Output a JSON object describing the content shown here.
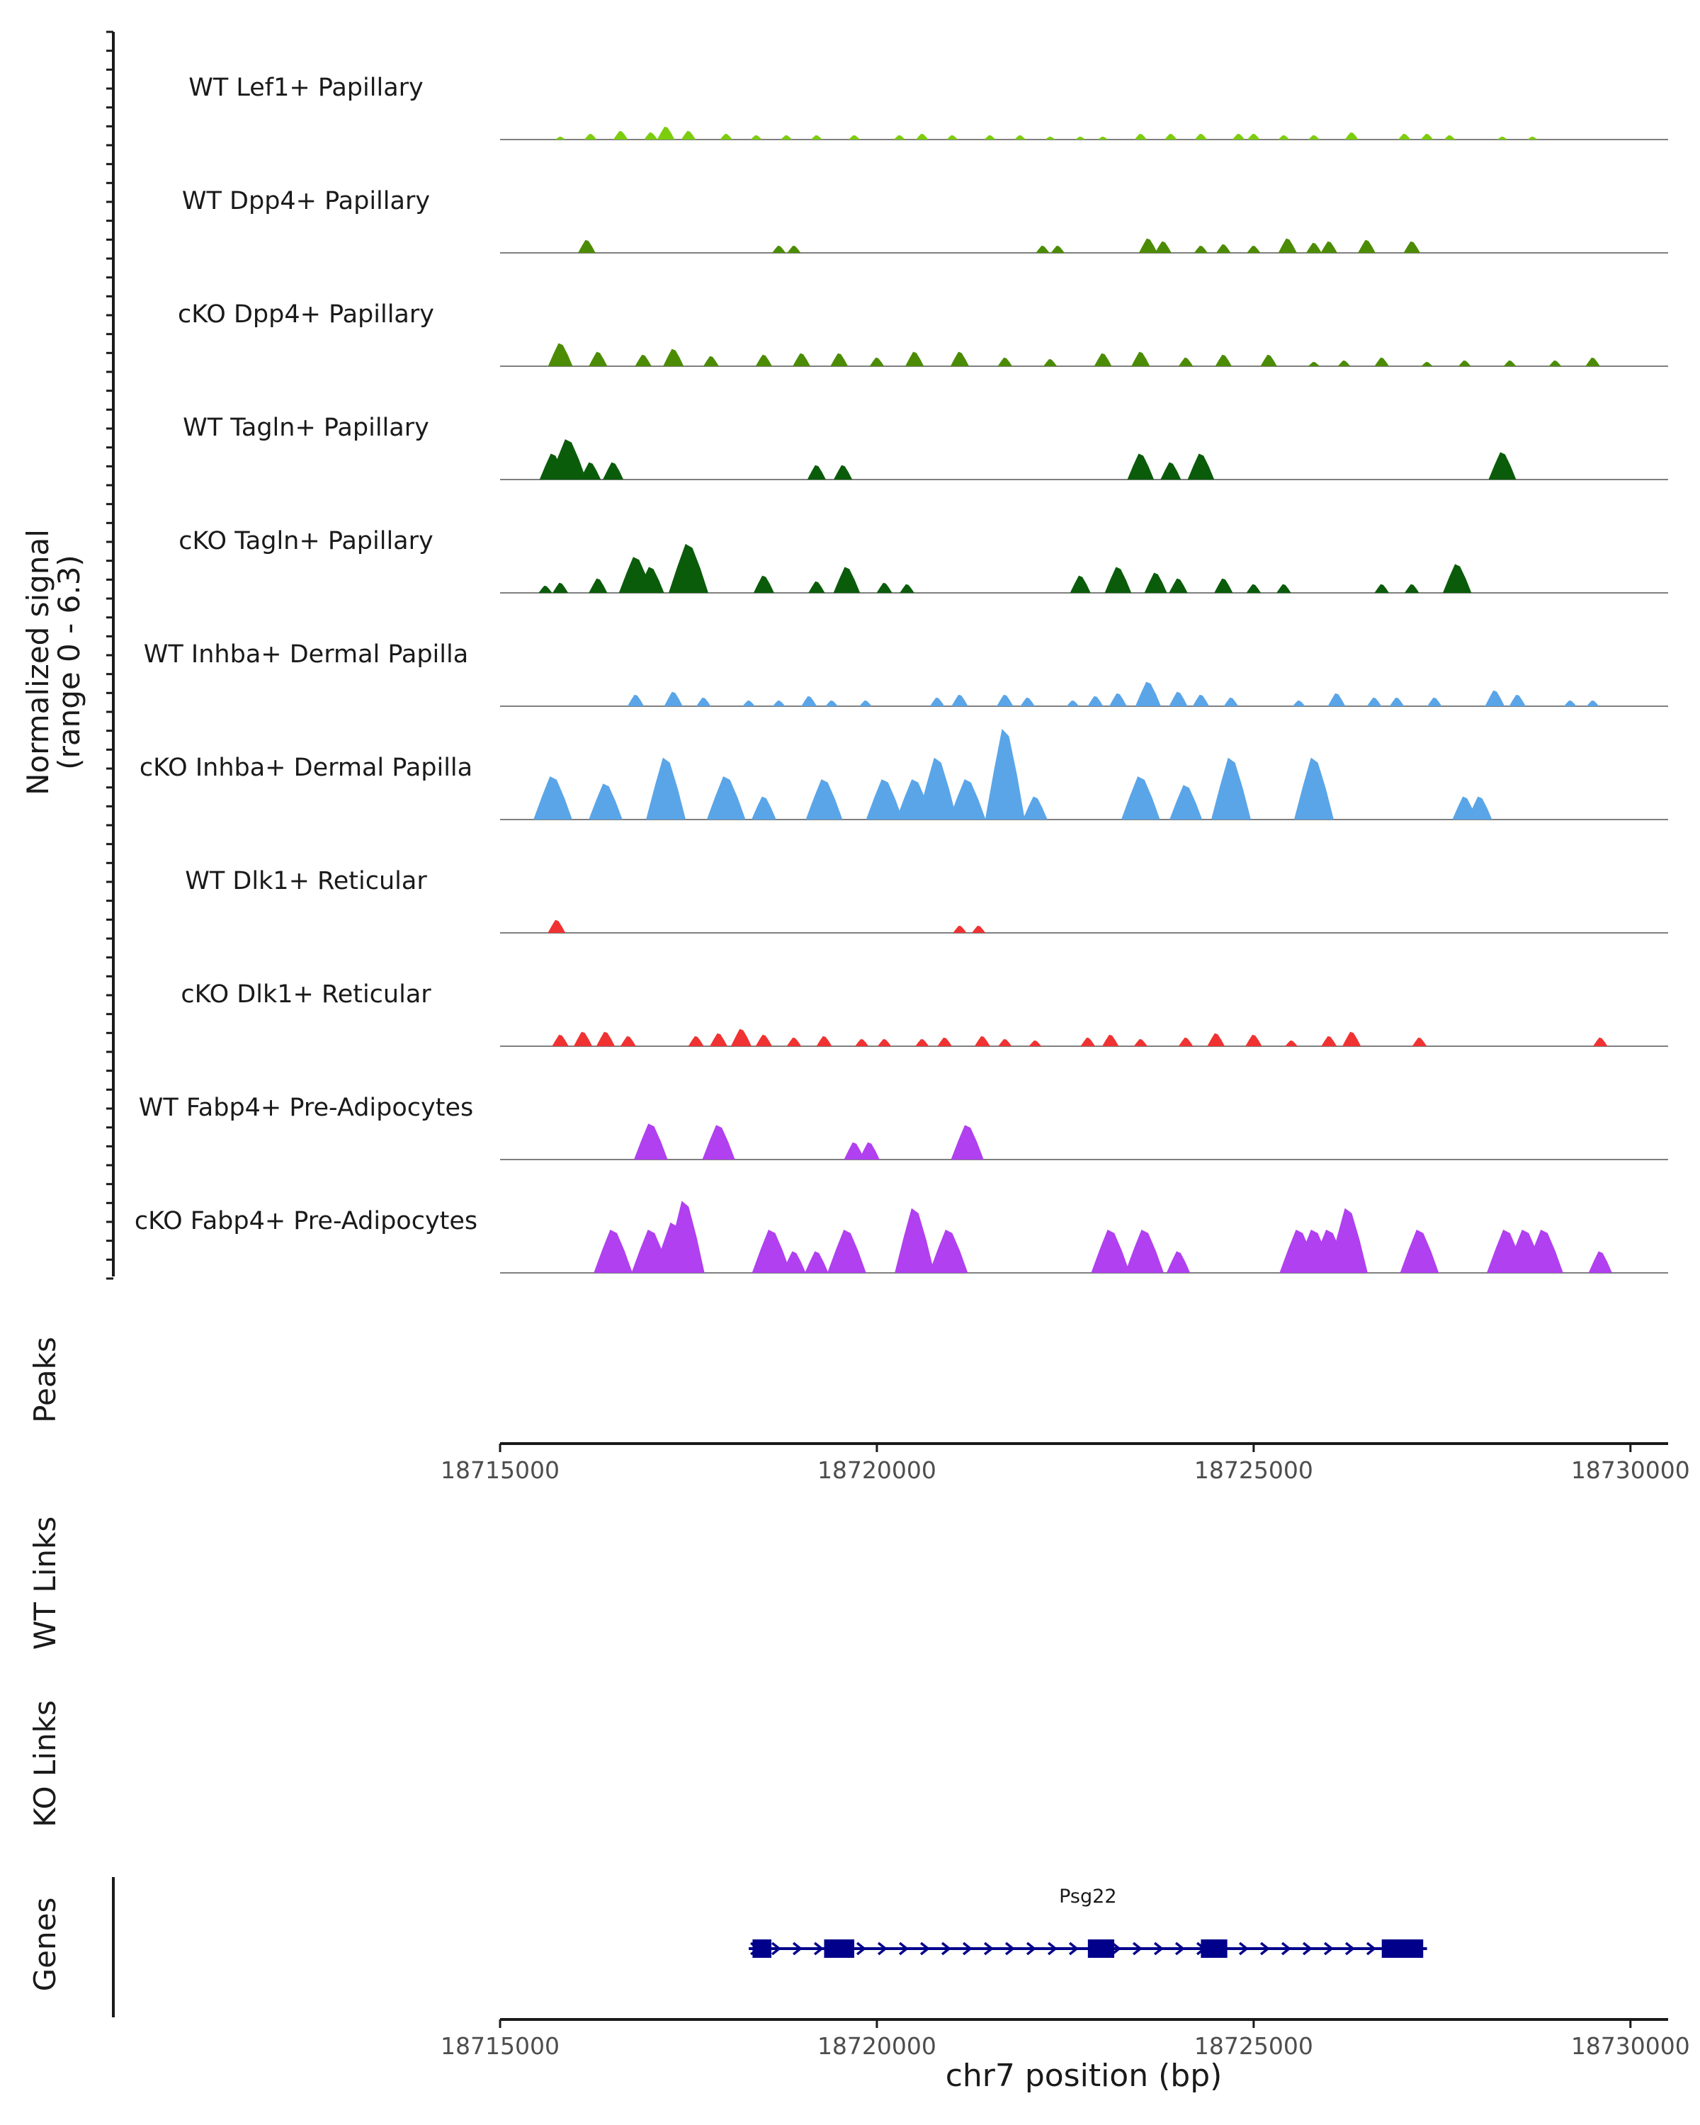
{
  "chart_data": {
    "type": "area",
    "title": "",
    "ylabel": "Normalized signal",
    "ylabel_range": "(range 0 - 6.3)",
    "ylim": [
      0,
      6.3
    ],
    "xlabel": "chr7 position (bp)",
    "xlim": [
      18715000,
      18730500
    ],
    "xticks": [
      "18715000",
      "18720000",
      "18725000",
      "18730000"
    ],
    "tracks": [
      {
        "name": "WT Lef1+ Papillary",
        "color": "#7ccd0c",
        "peaks": [
          [
            18715800,
            0.2
          ],
          [
            18716200,
            0.4
          ],
          [
            18716600,
            0.6
          ],
          [
            18717000,
            0.5
          ],
          [
            18717200,
            0.9
          ],
          [
            18717500,
            0.6
          ],
          [
            18718000,
            0.4
          ],
          [
            18718400,
            0.3
          ],
          [
            18718800,
            0.3
          ],
          [
            18719200,
            0.3
          ],
          [
            18719700,
            0.3
          ],
          [
            18720300,
            0.3
          ],
          [
            18720600,
            0.4
          ],
          [
            18721000,
            0.3
          ],
          [
            18721500,
            0.3
          ],
          [
            18721900,
            0.3
          ],
          [
            18722300,
            0.2
          ],
          [
            18722700,
            0.2
          ],
          [
            18723000,
            0.2
          ],
          [
            18723500,
            0.4
          ],
          [
            18723900,
            0.4
          ],
          [
            18724300,
            0.4
          ],
          [
            18724800,
            0.4
          ],
          [
            18725000,
            0.4
          ],
          [
            18725400,
            0.3
          ],
          [
            18725800,
            0.3
          ],
          [
            18726300,
            0.5
          ],
          [
            18727000,
            0.4
          ],
          [
            18727300,
            0.4
          ],
          [
            18727600,
            0.3
          ],
          [
            18728300,
            0.2
          ],
          [
            18728700,
            0.2
          ]
        ]
      },
      {
        "name": "WT Dpp4+ Papillary",
        "color": "#4c8c04",
        "peaks": [
          [
            18716150,
            0.9
          ],
          [
            18718700,
            0.5
          ],
          [
            18718900,
            0.5
          ],
          [
            18722200,
            0.5
          ],
          [
            18722400,
            0.5
          ],
          [
            18723600,
            1.0
          ],
          [
            18723800,
            0.8
          ],
          [
            18724300,
            0.5
          ],
          [
            18724600,
            0.6
          ],
          [
            18725000,
            0.5
          ],
          [
            18725450,
            1.0
          ],
          [
            18725800,
            0.7
          ],
          [
            18726000,
            0.8
          ],
          [
            18726500,
            0.9
          ],
          [
            18727100,
            0.8
          ]
        ]
      },
      {
        "name": "cKO Dpp4+ Papillary",
        "color": "#4c8c04",
        "peaks": [
          [
            18715800,
            1.6
          ],
          [
            18716300,
            1.0
          ],
          [
            18716900,
            0.8
          ],
          [
            18717300,
            1.2
          ],
          [
            18717800,
            0.7
          ],
          [
            18718500,
            0.8
          ],
          [
            18719000,
            0.9
          ],
          [
            18719500,
            0.9
          ],
          [
            18720000,
            0.6
          ],
          [
            18720500,
            1.0
          ],
          [
            18721100,
            1.0
          ],
          [
            18721700,
            0.6
          ],
          [
            18722300,
            0.5
          ],
          [
            18723000,
            0.9
          ],
          [
            18723500,
            1.0
          ],
          [
            18724100,
            0.6
          ],
          [
            18724600,
            0.8
          ],
          [
            18725200,
            0.8
          ],
          [
            18725800,
            0.3
          ],
          [
            18726200,
            0.4
          ],
          [
            18726700,
            0.6
          ],
          [
            18727300,
            0.3
          ],
          [
            18727800,
            0.4
          ],
          [
            18728400,
            0.4
          ],
          [
            18729000,
            0.4
          ],
          [
            18729500,
            0.6
          ]
        ]
      },
      {
        "name": "WT Tagln+ Papillary",
        "color": "#0a5c0a",
        "peaks": [
          [
            18715700,
            1.8
          ],
          [
            18715900,
            2.8
          ],
          [
            18716200,
            1.2
          ],
          [
            18716500,
            1.2
          ],
          [
            18719200,
            1.0
          ],
          [
            18719550,
            1.0
          ],
          [
            18723500,
            1.8
          ],
          [
            18723900,
            1.2
          ],
          [
            18724300,
            1.8
          ],
          [
            18728300,
            1.9
          ]
        ]
      },
      {
        "name": "cKO Tagln+ Papillary",
        "color": "#0a5c0a",
        "peaks": [
          [
            18715600,
            0.5
          ],
          [
            18715800,
            0.7
          ],
          [
            18716300,
            1.0
          ],
          [
            18716800,
            2.5
          ],
          [
            18717000,
            1.8
          ],
          [
            18717500,
            3.4
          ],
          [
            18718500,
            1.2
          ],
          [
            18719200,
            0.8
          ],
          [
            18719600,
            1.8
          ],
          [
            18720100,
            0.7
          ],
          [
            18720400,
            0.6
          ],
          [
            18722700,
            1.2
          ],
          [
            18723200,
            1.8
          ],
          [
            18723700,
            1.4
          ],
          [
            18724000,
            1.0
          ],
          [
            18724600,
            1.0
          ],
          [
            18725000,
            0.6
          ],
          [
            18725400,
            0.6
          ],
          [
            18726700,
            0.6
          ],
          [
            18727100,
            0.6
          ],
          [
            18727700,
            2.0
          ]
        ]
      },
      {
        "name": "WT Inhba+ Dermal Papilla",
        "color": "#5aa5e8",
        "peaks": [
          [
            18716800,
            0.8
          ],
          [
            18717300,
            1.0
          ],
          [
            18717700,
            0.6
          ],
          [
            18718300,
            0.4
          ],
          [
            18718700,
            0.4
          ],
          [
            18719100,
            0.7
          ],
          [
            18719400,
            0.4
          ],
          [
            18719850,
            0.4
          ],
          [
            18720800,
            0.6
          ],
          [
            18721100,
            0.8
          ],
          [
            18721700,
            0.8
          ],
          [
            18722000,
            0.6
          ],
          [
            18722600,
            0.4
          ],
          [
            18722900,
            0.7
          ],
          [
            18723200,
            0.9
          ],
          [
            18723600,
            1.7
          ],
          [
            18724000,
            1.0
          ],
          [
            18724300,
            0.8
          ],
          [
            18724700,
            0.6
          ],
          [
            18725600,
            0.4
          ],
          [
            18726100,
            0.9
          ],
          [
            18726600,
            0.6
          ],
          [
            18726900,
            0.6
          ],
          [
            18727400,
            0.6
          ],
          [
            18728200,
            1.1
          ],
          [
            18728500,
            0.8
          ],
          [
            18729200,
            0.4
          ],
          [
            18729500,
            0.4
          ]
        ]
      },
      {
        "name": "cKO Inhba+ Dermal Papilla",
        "color": "#5aa5e8",
        "peaks": [
          [
            18715700,
            3.0
          ],
          [
            18716400,
            2.5
          ],
          [
            18717200,
            4.3
          ],
          [
            18718000,
            3.0
          ],
          [
            18718500,
            1.6
          ],
          [
            18719300,
            2.8
          ],
          [
            18720100,
            2.8
          ],
          [
            18720500,
            2.8
          ],
          [
            18720800,
            4.3
          ],
          [
            18721200,
            2.8
          ],
          [
            18721700,
            6.3
          ],
          [
            18722100,
            1.6
          ],
          [
            18723500,
            3.0
          ],
          [
            18724100,
            2.4
          ],
          [
            18724700,
            4.3
          ],
          [
            18725800,
            4.3
          ],
          [
            18727800,
            1.6
          ],
          [
            18728000,
            1.6
          ]
        ]
      },
      {
        "name": "WT Dlk1+ Reticular",
        "color": "#f03232",
        "peaks": [
          [
            18715750,
            0.9
          ],
          [
            18721100,
            0.5
          ],
          [
            18721350,
            0.5
          ]
        ]
      },
      {
        "name": "cKO Dlk1+ Reticular",
        "color": "#f03232",
        "peaks": [
          [
            18715800,
            0.8
          ],
          [
            18716100,
            1.0
          ],
          [
            18716400,
            1.0
          ],
          [
            18716700,
            0.7
          ],
          [
            18717600,
            0.7
          ],
          [
            18717900,
            0.9
          ],
          [
            18718200,
            1.2
          ],
          [
            18718500,
            0.8
          ],
          [
            18718900,
            0.6
          ],
          [
            18719300,
            0.7
          ],
          [
            18719800,
            0.5
          ],
          [
            18720100,
            0.5
          ],
          [
            18720600,
            0.5
          ],
          [
            18720900,
            0.6
          ],
          [
            18721400,
            0.7
          ],
          [
            18721700,
            0.5
          ],
          [
            18722100,
            0.4
          ],
          [
            18722800,
            0.6
          ],
          [
            18723100,
            0.8
          ],
          [
            18723500,
            0.5
          ],
          [
            18724100,
            0.6
          ],
          [
            18724500,
            0.9
          ],
          [
            18725000,
            0.8
          ],
          [
            18725500,
            0.4
          ],
          [
            18726000,
            0.7
          ],
          [
            18726300,
            1.0
          ],
          [
            18727200,
            0.6
          ],
          [
            18729600,
            0.6
          ]
        ]
      },
      {
        "name": "WT Fabp4+ Pre-Adipocytes",
        "color": "#b040f0",
        "peaks": [
          [
            18717000,
            2.5
          ],
          [
            18717900,
            2.4
          ],
          [
            18719700,
            1.2
          ],
          [
            18719900,
            1.2
          ],
          [
            18721200,
            2.4
          ]
        ]
      },
      {
        "name": "cKO Fabp4+ Pre-Adipocytes",
        "color": "#b040f0",
        "peaks": [
          [
            18716500,
            3.0
          ],
          [
            18717000,
            3.0
          ],
          [
            18717300,
            3.5
          ],
          [
            18717450,
            5.0
          ],
          [
            18718600,
            3.0
          ],
          [
            18718900,
            1.5
          ],
          [
            18719200,
            1.5
          ],
          [
            18719600,
            3.0
          ],
          [
            18720500,
            4.5
          ],
          [
            18720950,
            3.0
          ],
          [
            18723100,
            3.0
          ],
          [
            18723550,
            3.0
          ],
          [
            18724000,
            1.5
          ],
          [
            18725600,
            3.0
          ],
          [
            18725800,
            3.0
          ],
          [
            18726000,
            3.0
          ],
          [
            18726250,
            4.5
          ],
          [
            18727200,
            3.0
          ],
          [
            18728350,
            3.0
          ],
          [
            18728600,
            3.0
          ],
          [
            18728850,
            3.0
          ],
          [
            18729600,
            1.5
          ]
        ]
      }
    ],
    "panels": {
      "peaks_label": "Peaks",
      "wt_links_label": "WT Links",
      "ko_links_label": "KO Links",
      "genes_label": "Genes"
    },
    "gene": {
      "name": "Psg22",
      "color": "#00008b",
      "start": 18718300,
      "end": 18727300,
      "exons": [
        [
          18718350,
          18718600
        ],
        [
          18719300,
          18719700
        ],
        [
          18722800,
          18723150
        ],
        [
          18724300,
          18724650
        ],
        [
          18726700,
          18727250
        ]
      ]
    }
  }
}
